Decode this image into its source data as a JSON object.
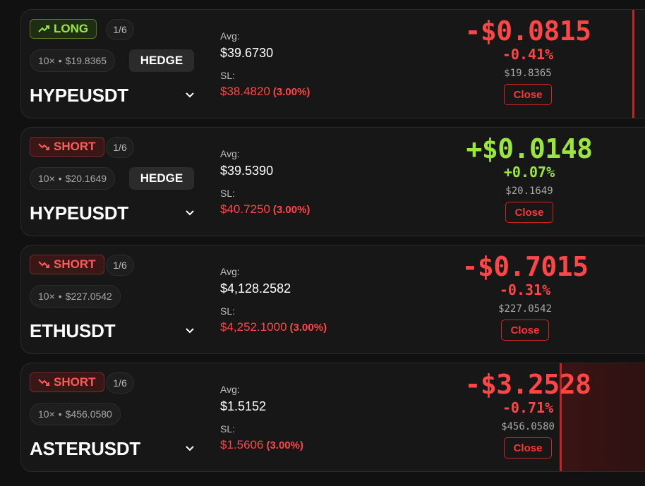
{
  "positions": [
    {
      "side": "LONG",
      "count": "1/6",
      "leverage": "10×",
      "margin": "$19.8365",
      "hedge_label": "HEDGE",
      "symbol": "HYPEUSDT",
      "avg_label": "Avg:",
      "avg": "$39.6730",
      "sl_label": "SL:",
      "sl": "$38.4820",
      "sl_pct": "(3.00%)",
      "pnl": "-$0.0815",
      "pnl_pct": "-0.41%",
      "mark": "$19.8365",
      "close_label": "Close"
    },
    {
      "side": "SHORT",
      "count": "1/6",
      "leverage": "10×",
      "margin": "$20.1649",
      "hedge_label": "HEDGE",
      "symbol": "HYPEUSDT",
      "avg_label": "Avg:",
      "avg": "$39.5390",
      "sl_label": "SL:",
      "sl": "$40.7250",
      "sl_pct": "(3.00%)",
      "pnl": "+$0.0148",
      "pnl_pct": "+0.07%",
      "mark": "$20.1649",
      "close_label": "Close"
    },
    {
      "side": "SHORT",
      "count": "1/6",
      "leverage": "10×",
      "margin": "$227.0542",
      "symbol": "ETHUSDT",
      "avg_label": "Avg:",
      "avg": "$4,128.2582",
      "sl_label": "SL:",
      "sl": "$4,252.1000",
      "sl_pct": "(3.00%)",
      "pnl": "-$0.7015",
      "pnl_pct": "-0.31%",
      "mark": "$227.0542",
      "close_label": "Close"
    },
    {
      "side": "SHORT",
      "count": "1/6",
      "leverage": "10×",
      "margin": "$456.0580",
      "symbol": "ASTERUSDT",
      "avg_label": "Avg:",
      "avg": "$1.5152",
      "sl_label": "SL:",
      "sl": "$1.5606",
      "sl_pct": "(3.00%)",
      "pnl": "-$3.2528",
      "pnl_pct": "-0.71%",
      "mark": "$456.0580",
      "close_label": "Close"
    }
  ],
  "separator": "•",
  "icons": {
    "long": "trending-up-icon",
    "short": "trending-down-icon",
    "expand": "chevron-down-icon"
  },
  "colors": {
    "long": "#9be63c",
    "short": "#ff5a5a",
    "loss": "#ff4646",
    "profit": "#9be63c",
    "close_border": "#d32323"
  }
}
